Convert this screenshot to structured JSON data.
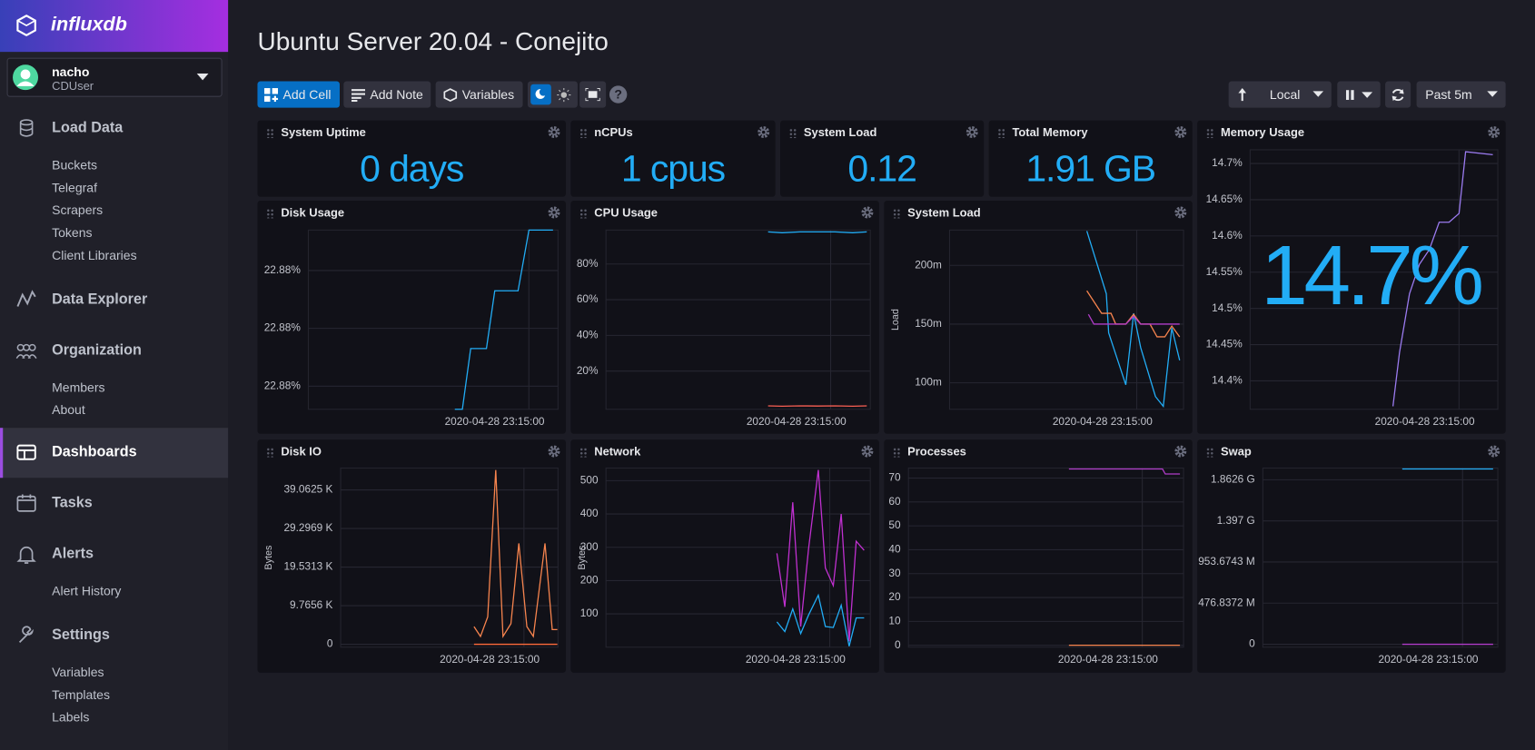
{
  "sidebar": {
    "brand": "influxdb",
    "user": {
      "name": "nacho",
      "org": "CDUser"
    },
    "nav": [
      {
        "label": "Load Data",
        "items": [
          "Buckets",
          "Telegraf",
          "Scrapers",
          "Tokens",
          "Client Libraries"
        ]
      },
      {
        "label": "Data Explorer",
        "items": []
      },
      {
        "label": "Organization",
        "items": [
          "Members",
          "About"
        ]
      },
      {
        "label": "Dashboards",
        "items": []
      },
      {
        "label": "Tasks",
        "items": []
      },
      {
        "label": "Alerts",
        "items": [
          "Alert History"
        ]
      },
      {
        "label": "Settings",
        "items": [
          "Variables",
          "Templates",
          "Labels"
        ]
      }
    ],
    "active": "Dashboards"
  },
  "header": {
    "title": "Ubuntu Server 20.04 - Conejito"
  },
  "toolbar": {
    "add_cell": "Add Cell",
    "add_note": "Add Note",
    "variables": "Variables",
    "timezone": "Local",
    "time_range": "Past 5m"
  },
  "cells": [
    {
      "title": "System Uptime",
      "type": "stat",
      "value": 0,
      "value_label": "0 days"
    },
    {
      "title": "nCPUs",
      "type": "stat",
      "value": 1,
      "value_label": "1 cpus"
    },
    {
      "title": "System Load",
      "type": "stat",
      "value": 0.12,
      "value_label": "0.12"
    },
    {
      "title": "Total Memory",
      "type": "stat",
      "value": 1.91,
      "value_label": "1.91 GB"
    },
    {
      "title": "Memory Usage",
      "type": "line-stat",
      "value": 14.7,
      "value_label": "14.7%",
      "xlim": [
        0,
        300
      ],
      "xticks": [
        {
          "value": 253,
          "label": "2020-04-28 23:15:00"
        }
      ],
      "ylim": [
        14.3608,
        14.7189
      ],
      "yticks": [
        {
          "value": 14.4,
          "label": "14.4%"
        },
        {
          "value": 14.45,
          "label": "14.45%"
        },
        {
          "value": 14.5,
          "label": "14.5%"
        },
        {
          "value": 14.55,
          "label": "14.55%"
        },
        {
          "value": 14.6,
          "label": "14.6%"
        },
        {
          "value": 14.65,
          "label": "14.65%"
        },
        {
          "value": 14.7,
          "label": "14.7%"
        }
      ],
      "grid": true,
      "series": [
        {
          "color": "#9b7bf0",
          "x": [
            173,
            181,
            193,
            205,
            217,
            229,
            241,
            253,
            261,
            294
          ],
          "values": [
            14.3649,
            14.4392,
            14.5203,
            14.5608,
            14.5811,
            14.6189,
            14.6189,
            14.6311,
            14.7162,
            14.7122
          ]
        }
      ]
    },
    {
      "title": "Disk Usage",
      "type": "line",
      "xlim": [
        0,
        300
      ],
      "xticks": [
        {
          "value": 265,
          "label": "2020-04-28 23:15:00"
        }
      ],
      "ylim": [
        22.8772,
        22.8834
      ],
      "yticks": [
        {
          "value": 22.878,
          "label": "22.88%"
        },
        {
          "value": 22.88,
          "label": "22.88%"
        },
        {
          "value": 22.882,
          "label": "22.88%"
        }
      ],
      "grid": true,
      "series": [
        {
          "color": "#22adf6",
          "x": [
            176,
            185,
            195,
            214,
            224,
            252,
            265,
            294
          ],
          "values": [
            22.8772,
            22.8772,
            22.8793,
            22.8793,
            22.8813,
            22.8813,
            22.8834,
            22.8834
          ]
        }
      ]
    },
    {
      "title": "CPU Usage",
      "type": "line",
      "xlim": [
        0,
        300
      ],
      "xticks": [
        {
          "value": 255,
          "label": "2020-04-28 23:15:00"
        }
      ],
      "ylim": [
        -1.4,
        99
      ],
      "yticks": [
        {
          "value": 20,
          "label": "20%"
        },
        {
          "value": 40,
          "label": "40%"
        },
        {
          "value": 60,
          "label": "60%"
        },
        {
          "value": 80,
          "label": "80%"
        }
      ],
      "grid": true,
      "series": [
        {
          "color": "#22adf6",
          "x": [
            184,
            200,
            220,
            240,
            260,
            280,
            296
          ],
          "values": [
            98,
            97.5,
            98,
            98,
            98,
            97.5,
            98
          ]
        },
        {
          "color": "#f95f53",
          "x": [
            184,
            200,
            220,
            240,
            260,
            280,
            296
          ],
          "values": [
            0.5,
            0.3,
            0.5,
            0.4,
            0.5,
            0.3,
            0.5
          ]
        }
      ]
    },
    {
      "title": "System Load",
      "type": "line",
      "y_label": "Load",
      "xlim": [
        0,
        300
      ],
      "xticks": [
        {
          "value": 240,
          "label": "2020-04-28 23:15:00"
        }
      ],
      "ylim": [
        0.0775,
        0.23
      ],
      "yticks": [
        {
          "value": 0.1,
          "label": "100m"
        },
        {
          "value": 0.15,
          "label": "150m"
        },
        {
          "value": 0.2,
          "label": "200m"
        }
      ],
      "grid": true,
      "series": [
        {
          "color": "#22adf6",
          "x": [
            176,
            201,
            204,
            226,
            236,
            245,
            264,
            274,
            285,
            295
          ],
          "values": [
            0.2292,
            0.1758,
            0.1425,
            0.0983,
            0.1592,
            0.13,
            0.0883,
            0.08,
            0.1467,
            0.1192
          ]
        },
        {
          "color": "#f7844e",
          "x": [
            176,
            195,
            207,
            213,
            226,
            236,
            245,
            257,
            266,
            276,
            285,
            295
          ],
          "values": [
            0.1783,
            0.1592,
            0.1592,
            0.15,
            0.15,
            0.1583,
            0.15,
            0.15,
            0.1392,
            0.1392,
            0.1483,
            0.1392
          ]
        },
        {
          "color": "#b03cc8",
          "x": [
            178,
            185,
            226,
            236,
            245,
            295
          ],
          "values": [
            0.1583,
            0.15,
            0.15,
            0.1567,
            0.15,
            0.15
          ]
        }
      ]
    },
    {
      "title": "Disk IO",
      "type": "line",
      "y_label": "Bytes",
      "xlim": [
        0,
        300
      ],
      "xticks": [
        {
          "value": 253,
          "label": "2020-04-28 23:15:00"
        }
      ],
      "ylim": [
        -761,
        45685
      ],
      "yticks": [
        0,
        {
          "value": 10000,
          "label": "9.7656 K"
        },
        {
          "value": 20000,
          "label": "19.5313 K"
        },
        {
          "value": 30000,
          "label": "29.2969 K"
        },
        {
          "value": 40000,
          "label": "39.0625 K"
        }
      ],
      "grid": true,
      "series": [
        {
          "color": "#f7844e",
          "x": [
            184,
            193,
            203,
            214,
            224,
            235,
            246,
            257,
            266,
            282,
            292,
            299
          ],
          "values": [
            4569,
            2030,
            7107,
            45178,
            2030,
            5330,
            26142,
            4569,
            2030,
            26142,
            3807,
            3807
          ]
        },
        {
          "color": "#ff6a3a",
          "x": [
            184,
            299
          ],
          "values": [
            0,
            0
          ]
        }
      ]
    },
    {
      "title": "Network",
      "type": "line",
      "y_label": "Bytes",
      "xlim": [
        0,
        300
      ],
      "xticks": [
        {
          "value": 254,
          "label": "2020-04-28 23:15:00"
        }
      ],
      "ylim": [
        0,
        538
      ],
      "yticks": [
        100,
        200,
        300,
        400,
        500
      ],
      "grid": true,
      "series": [
        {
          "color": "#c030d0",
          "x": [
            194,
            203,
            212,
            221,
            230,
            241,
            249,
            258,
            267,
            276,
            284,
            293
          ],
          "values": [
            282,
            121,
            435,
            62,
            297,
            532,
            238,
            185,
            400,
            18,
            318,
            291
          ]
        },
        {
          "color": "#22adf6",
          "x": [
            194,
            203,
            212,
            221,
            230,
            241,
            249,
            258,
            267,
            276,
            284,
            293
          ],
          "values": [
            76,
            47,
            115,
            41,
            97,
            156,
            62,
            59,
            126,
            3,
            88,
            88
          ]
        }
      ]
    },
    {
      "title": "Processes",
      "type": "line",
      "xlim": [
        0,
        300
      ],
      "xticks": [
        {
          "value": 255,
          "label": "2020-04-28 23:15:00"
        }
      ],
      "ylim": [
        -0.8,
        74.2
      ],
      "yticks": [
        0,
        10,
        20,
        30,
        40,
        50,
        60,
        70
      ],
      "grid": true,
      "series": [
        {
          "color": "#b03cc8",
          "x": [
            175,
            277,
            280,
            296
          ],
          "values": [
            73.8,
            73.8,
            71.7,
            71.7
          ]
        },
        {
          "color": "#f7844e",
          "x": [
            175,
            296
          ],
          "values": [
            0,
            0
          ]
        }
      ]
    },
    {
      "title": "Swap",
      "type": "line",
      "xlim": [
        0,
        300
      ],
      "xticks": [
        {
          "value": 255,
          "label": "2020-04-28 23:15:00"
        }
      ],
      "ylim": [
        -35700000,
        2143000000
      ],
      "yticks": [
        0,
        {
          "value": 500000000,
          "label": "476.8372 M"
        },
        {
          "value": 1000000000,
          "label": "953.6743 M"
        },
        {
          "value": 1500000000,
          "label": "1.397 G"
        },
        {
          "value": 2000000000,
          "label": "1.8626 G"
        }
      ],
      "grid": true,
      "series": [
        {
          "color": "#22adf6",
          "x": [
            178,
            294
          ],
          "values": [
            2131000000,
            2131000000
          ]
        },
        {
          "color": "#b03cc8",
          "x": [
            178,
            294
          ],
          "values": [
            0,
            0
          ]
        }
      ]
    }
  ]
}
